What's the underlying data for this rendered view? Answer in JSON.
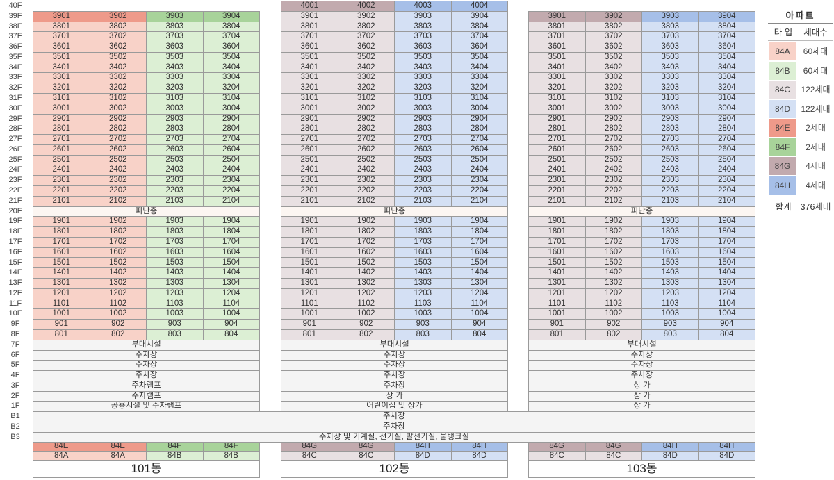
{
  "floor_labels": [
    "40F",
    "39F",
    "38F",
    "37F",
    "36F",
    "35F",
    "34F",
    "33F",
    "32F",
    "31F",
    "30F",
    "29F",
    "28F",
    "27F",
    "26F",
    "25F",
    "24F",
    "23F",
    "22F",
    "21F",
    "20F",
    "19F",
    "18F",
    "17F",
    "16F",
    "15F",
    "14F",
    "13F",
    "12F",
    "11F",
    "10F",
    "9F",
    "8F",
    "7F",
    "6F",
    "5F",
    "4F",
    "3F",
    "2F",
    "1F",
    "B1",
    "B2",
    "B3"
  ],
  "colors": {
    "84A_light": "#f8d2c8",
    "84A_dark": "#ee9a8a",
    "84B_light": "#dcefd4",
    "84B_dark": "#a8d39a",
    "84C_light": "#e8e0e2",
    "84C_dark": "#c2aaae",
    "84D_light": "#d4e0f4",
    "84D_dark": "#a6bfe8",
    "84E": "#ee9a8a",
    "84F": "#a8d39a",
    "84G": "#c2aaae",
    "84H": "#a6bfe8",
    "facility": "#f4f4f4",
    "refuge": "#fcf6f2"
  },
  "buildings": [
    {
      "name": "101동",
      "top_floor": 39,
      "col_types": [
        "84A",
        "84A",
        "84B",
        "84B"
      ],
      "refuge_label": "피난층",
      "ground_bands": [
        "부대시설",
        "주차장",
        "주차장",
        "주차장",
        "주차램프",
        "주차램프",
        "공용시설 및 주차램프"
      ],
      "bottom_types": [
        {
          "label": "84E",
          "color": "84E"
        },
        {
          "label": "84E",
          "color": "84E"
        },
        {
          "label": "84F",
          "color": "84F"
        },
        {
          "label": "84F",
          "color": "84F"
        }
      ],
      "base_types": [
        "84A",
        "84A",
        "84B",
        "84B"
      ]
    },
    {
      "name": "102동",
      "top_floor": 40,
      "col_types": [
        "84C",
        "84C",
        "84D",
        "84D"
      ],
      "refuge_label": "피난층",
      "ground_bands": [
        "부대시설",
        "주차장",
        "주차장",
        "주차장",
        "주차장",
        "상 가",
        "어린이집 및 상가"
      ],
      "bottom_types": [
        {
          "label": "84G",
          "color": "84G"
        },
        {
          "label": "84G",
          "color": "84G"
        },
        {
          "label": "84H",
          "color": "84H"
        },
        {
          "label": "84H",
          "color": "84H"
        }
      ],
      "base_types": [
        "84C",
        "84C",
        "84D",
        "84D"
      ]
    },
    {
      "name": "103동",
      "top_floor": 39,
      "col_types": [
        "84C",
        "84C",
        "84D",
        "84D"
      ],
      "refuge_label": "피난층",
      "ground_bands": [
        "부대시설",
        "주차장",
        "주차장",
        "주차장",
        "상 가",
        "상 가",
        "상 가"
      ],
      "bottom_types": [
        {
          "label": "84G",
          "color": "84G"
        },
        {
          "label": "84G",
          "color": "84G"
        },
        {
          "label": "84H",
          "color": "84H"
        },
        {
          "label": "84H",
          "color": "84H"
        }
      ],
      "base_types": [
        "84C",
        "84C",
        "84D",
        "84D"
      ]
    }
  ],
  "below_grade": [
    "주차장",
    "주차장",
    "주차장 및 기계실, 전기실, 발전기실, 물탱크실"
  ],
  "legend": {
    "title": "아파트",
    "col_type": "타 입",
    "col_count": "세대수",
    "items": [
      {
        "type": "84A",
        "count": "60세대",
        "color": "84A_light"
      },
      {
        "type": "84B",
        "count": "60세대",
        "color": "84B_light"
      },
      {
        "type": "84C",
        "count": "122세대",
        "color": "84C_light"
      },
      {
        "type": "84D",
        "count": "122세대",
        "color": "84D_light"
      },
      {
        "type": "84E",
        "count": "2세대",
        "color": "84E"
      },
      {
        "type": "84F",
        "count": "2세대",
        "color": "84F"
      },
      {
        "type": "84G",
        "count": "4세대",
        "color": "84G"
      },
      {
        "type": "84H",
        "count": "4세대",
        "color": "84H"
      }
    ],
    "total_label": "합계",
    "total_count": "376세대"
  }
}
